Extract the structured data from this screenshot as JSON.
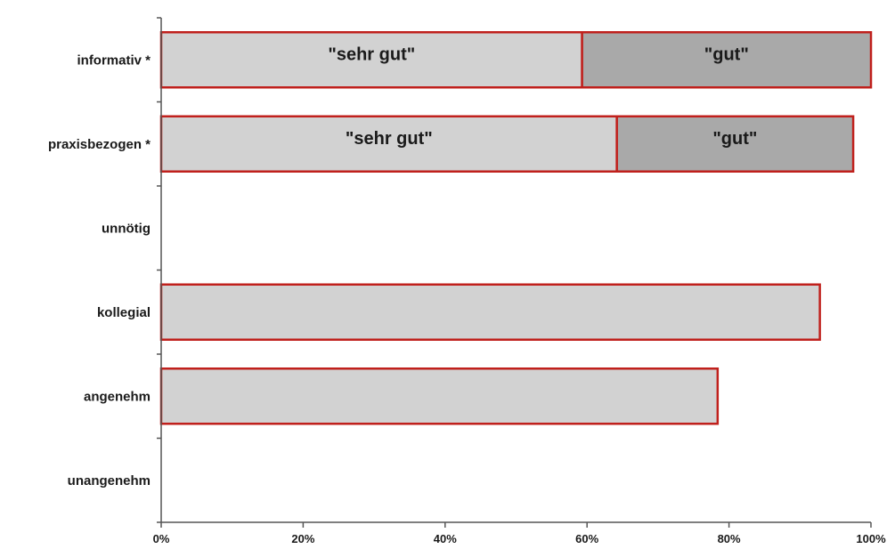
{
  "chart_data": {
    "type": "bar",
    "orientation": "horizontal",
    "stacked": true,
    "categories": [
      "informativ *",
      "praxisbezogen *",
      "unnötig",
      "kollegial",
      "angenehm",
      "unangenehm"
    ],
    "series": [
      {
        "name": "\"sehr gut\"",
        "values": [
          59.3,
          64.2,
          0,
          92.8,
          78.4,
          0
        ]
      },
      {
        "values": [
          40.7,
          33.3,
          0,
          0,
          0,
          0
        ]
      }
    ],
    "segment_labels": [
      [
        "\"sehr gut\"",
        "\"gut\""
      ],
      [
        "\"sehr gut\"",
        "\"gut\""
      ],
      [],
      [],
      [],
      []
    ],
    "x_ticks": [
      "0%",
      "20%",
      "40%",
      "60%",
      "80%",
      "100%"
    ],
    "xlim": [
      0,
      100
    ],
    "grid": false,
    "legend": "none",
    "colors": {
      "series_1_fill": "#d2d2d2",
      "series_2_fill": "#a9a9a9",
      "bar_border": "#c0201c",
      "axis": "#555555",
      "text": "#1a1a1a"
    }
  }
}
